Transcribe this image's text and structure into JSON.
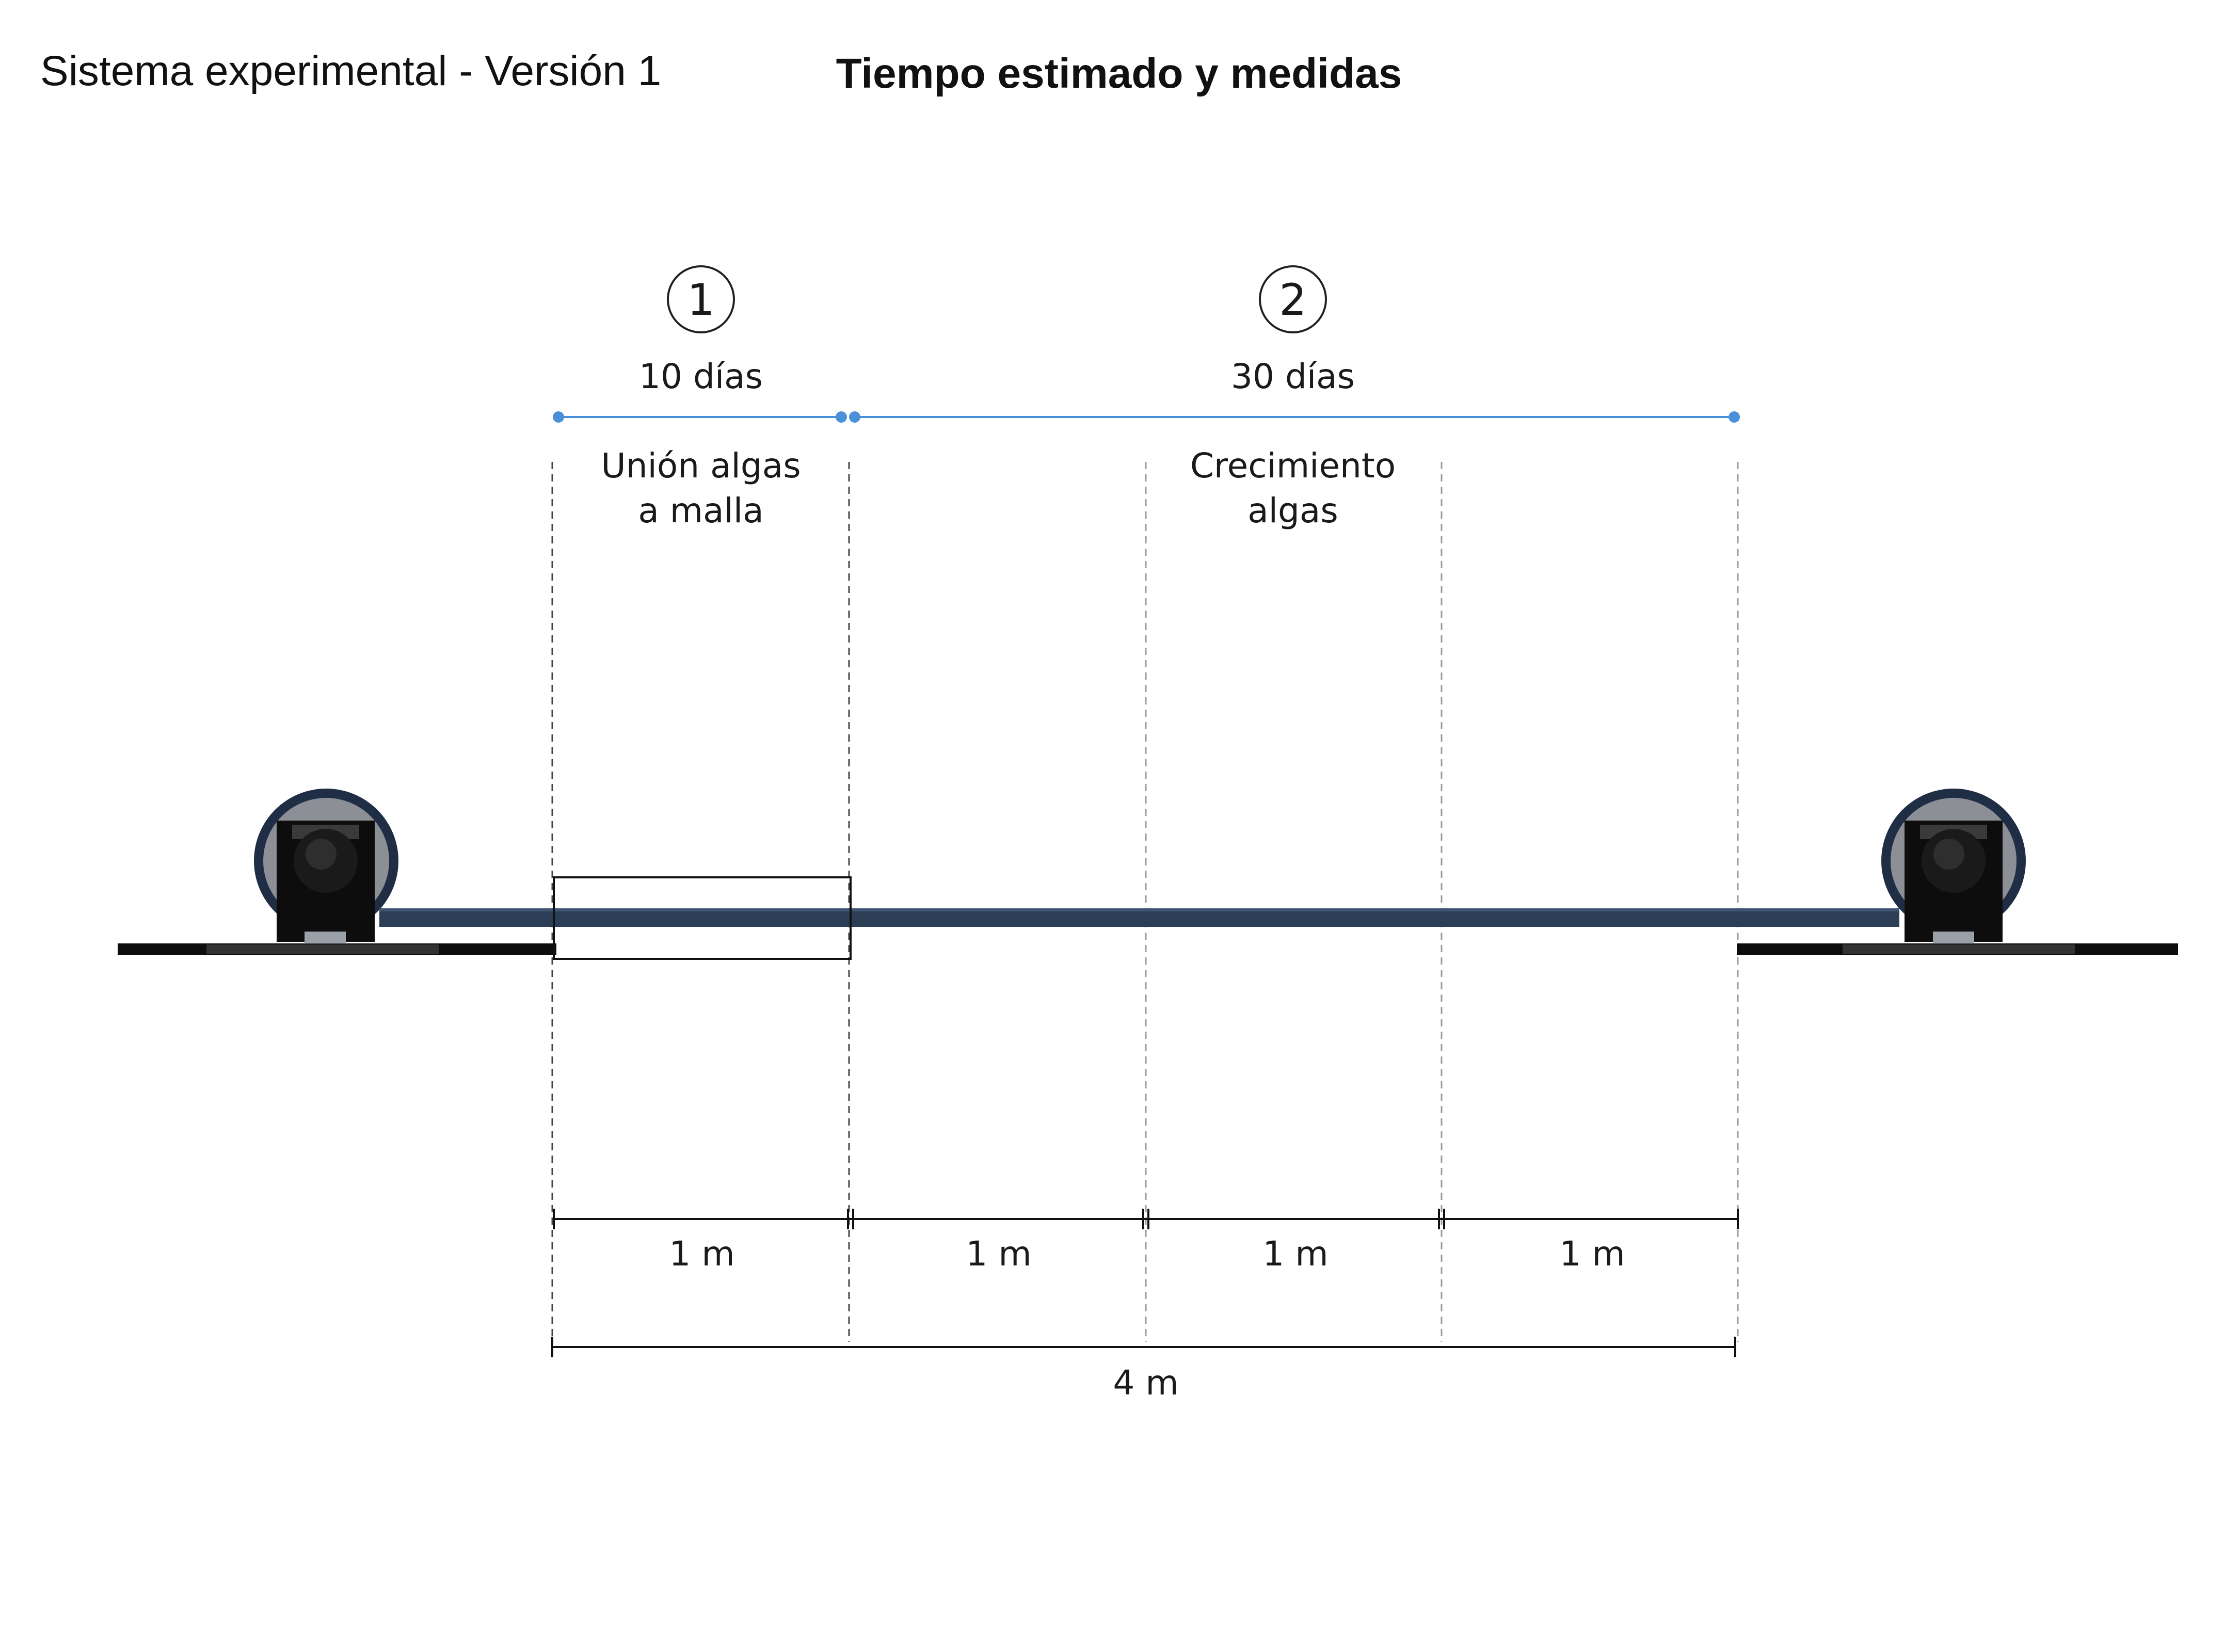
{
  "header": {
    "left_title": "Sistema experimental - Versión 1",
    "center_title": "Tiempo estimado y medidas"
  },
  "phases": [
    {
      "number": "1",
      "duration": "10 días",
      "label_line1": "Unión algas",
      "label_line2": "a malla"
    },
    {
      "number": "2",
      "duration": "30 días",
      "label_line1": "Crecimiento",
      "label_line2": "algas"
    }
  ],
  "segments": [
    "1 m",
    "1 m",
    "1 m",
    "1 m"
  ],
  "total_length": "4 m",
  "colors": {
    "timeline": "#4a90d9",
    "belt": "#2c3e55",
    "roller_rim": "#1f2e45",
    "roller_face": "#8c8f96",
    "motor_block": "#0d0d0d",
    "dim_line": "#111111",
    "guide_line": "#9a9a9a"
  }
}
